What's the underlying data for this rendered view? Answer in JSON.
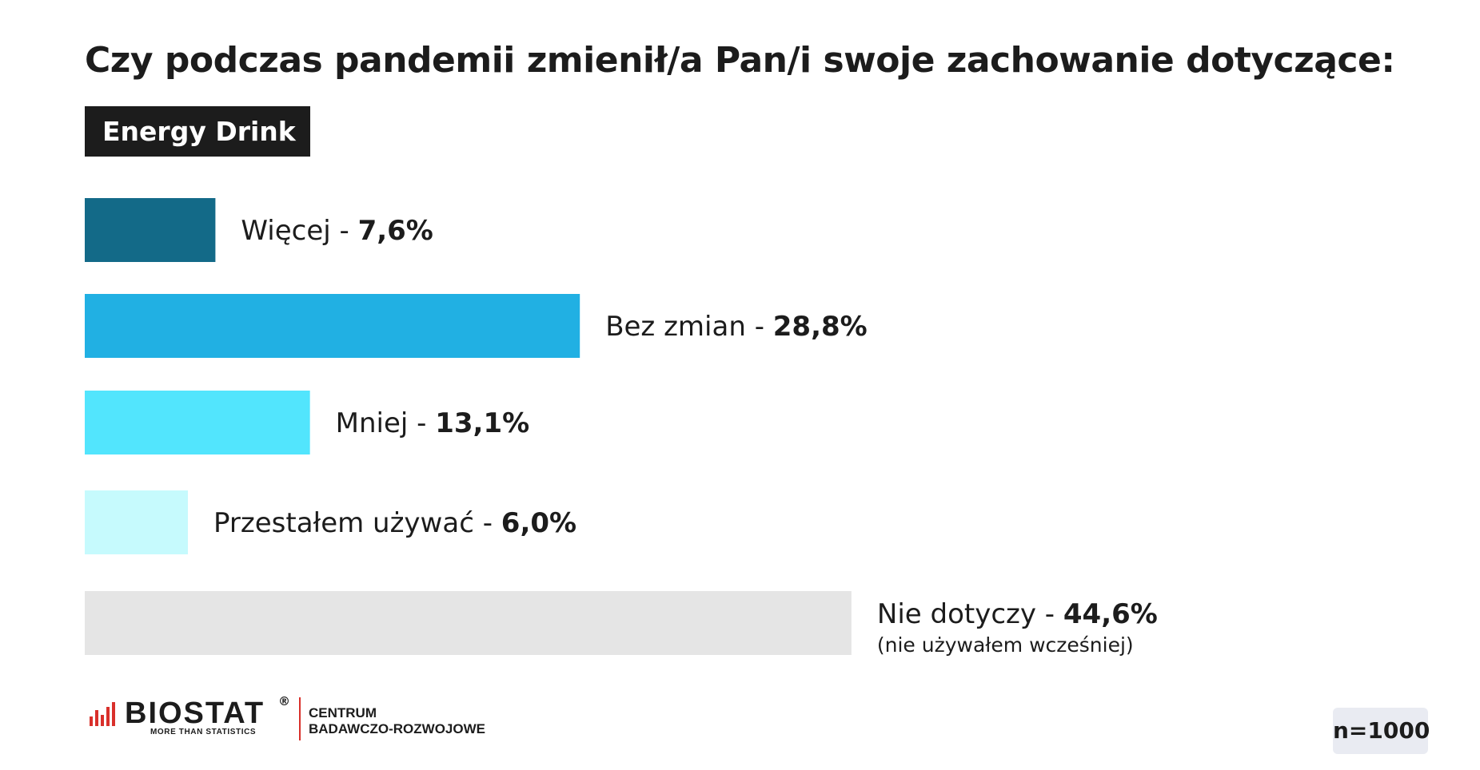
{
  "header": {
    "title": "Czy podczas pandemii zmienił/a Pan/i swoje zachowanie dotyczące:",
    "product_tag": "Energy Drink"
  },
  "chart_data": {
    "type": "bar",
    "orientation": "horizontal",
    "categories": [
      "Więcej",
      "Bez zmian",
      "Mniej",
      "Przestałem używać",
      "Nie dotyczy"
    ],
    "values": [
      7.6,
      28.8,
      13.1,
      6.0,
      44.6
    ],
    "value_labels": [
      "7,6%",
      "28,8%",
      "13,1%",
      "6,0%",
      "44,6%"
    ],
    "notes": [
      "",
      "",
      "",
      "",
      "(nie używałem wcześniej)"
    ],
    "colors": [
      "#136a88",
      "#21b0e3",
      "#52e5fd",
      "#c6fafd",
      "#e5e5e5"
    ],
    "separator": " - ",
    "grid": false,
    "legend": "none"
  },
  "footer": {
    "logo_word": "BIOSTAT",
    "logo_reg": "®",
    "logo_tagline": "MORE THAN STATISTICS",
    "center_line1": "CENTRUM",
    "center_line2": "BADAWCZO-ROZWOJOWE",
    "sample_size": "n=1000",
    "brand_color": "#d9302b"
  }
}
